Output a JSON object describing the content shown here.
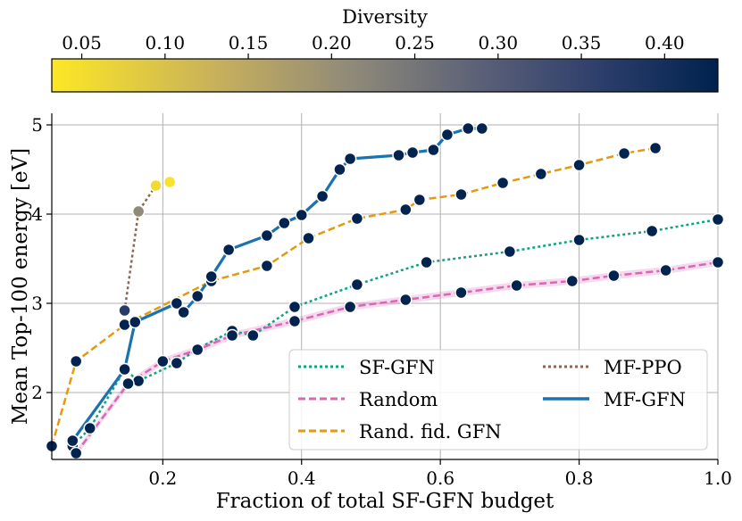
{
  "chart_data": {
    "type": "line",
    "xlabel": "Fraction of total SF-GFN budget",
    "ylabel": "Mean Top-100 energy [eV]",
    "xlim": [
      0.04,
      1.0
    ],
    "ylim": [
      1.25,
      5.13
    ],
    "xticks": [
      0.2,
      0.4,
      0.6,
      0.8,
      1.0
    ],
    "xtick_labels": [
      "0.2",
      "0.4",
      "0.6",
      "0.8",
      "1.0"
    ],
    "yticks": [
      2,
      3,
      4,
      5
    ],
    "ytick_labels": [
      "2",
      "3",
      "4",
      "5"
    ],
    "grid": true,
    "colorbar": {
      "label": "Diversity",
      "range": [
        0.032,
        0.432
      ],
      "ticks": [
        0.05,
        0.1,
        0.15,
        0.2,
        0.25,
        0.3,
        0.35,
        0.4
      ],
      "tick_labels": [
        "0.05",
        "0.10",
        "0.15",
        "0.20",
        "0.25",
        "0.30",
        "0.35",
        "0.40"
      ],
      "colormap": [
        "#fde725",
        "#c7b05c",
        "#8f8a79",
        "#595f77",
        "#2d3f6c",
        "#00224e"
      ]
    },
    "series": [
      {
        "name": "SF-GFN",
        "color": "#10a37f",
        "style": "dotted",
        "width": 2.5,
        "x": [
          0.07,
          0.095,
          0.145,
          0.165,
          0.22,
          0.25,
          0.3,
          0.33,
          0.39,
          0.48,
          0.58,
          0.7,
          0.8,
          0.905,
          1.0
        ],
        "y": [
          1.4,
          1.6,
          2.26,
          2.13,
          2.33,
          2.49,
          2.69,
          2.64,
          2.96,
          3.21,
          3.46,
          3.58,
          3.71,
          3.81,
          3.94
        ],
        "diversity": [
          0.43,
          0.43,
          0.43,
          0.43,
          0.43,
          0.43,
          0.43,
          0.43,
          0.43,
          0.43,
          0.43,
          0.43,
          0.43,
          0.43,
          0.43
        ]
      },
      {
        "name": "Random",
        "color": "#d868b6",
        "style": "dashed",
        "width": 2.5,
        "band": true,
        "x": [
          0.075,
          0.15,
          0.2,
          0.25,
          0.3,
          0.39,
          0.47,
          0.55,
          0.63,
          0.71,
          0.79,
          0.85,
          0.925,
          1.0
        ],
        "y": [
          1.32,
          2.1,
          2.35,
          2.48,
          2.64,
          2.8,
          2.96,
          3.04,
          3.12,
          3.2,
          3.25,
          3.31,
          3.37,
          3.46
        ],
        "diversity": [
          0.43,
          0.43,
          0.43,
          0.43,
          0.43,
          0.43,
          0.43,
          0.43,
          0.43,
          0.43,
          0.43,
          0.43,
          0.43,
          0.43
        ]
      },
      {
        "name": "Rand. fid. GFN",
        "color": "#e39a10",
        "style": "dashed",
        "width": 2.5,
        "x": [
          0.04,
          0.075,
          0.145,
          0.27,
          0.35,
          0.41,
          0.48,
          0.55,
          0.57,
          0.63,
          0.69,
          0.745,
          0.8,
          0.865,
          0.91
        ],
        "y": [
          1.4,
          2.35,
          2.76,
          3.25,
          3.42,
          3.73,
          3.95,
          4.05,
          4.16,
          4.22,
          4.35,
          4.45,
          4.55,
          4.68,
          4.74
        ],
        "diversity": [
          0.43,
          0.43,
          0.43,
          0.43,
          0.43,
          0.43,
          0.43,
          0.43,
          0.43,
          0.43,
          0.43,
          0.43,
          0.43,
          0.43,
          0.43
        ]
      },
      {
        "name": "MF-PPO",
        "color": "#8c6651",
        "style": "dotted",
        "width": 2.5,
        "x": [
          0.145,
          0.165,
          0.19,
          0.21
        ],
        "y": [
          2.92,
          4.03,
          4.32,
          4.36
        ],
        "diversity": [
          0.36,
          0.19,
          0.05,
          0.04
        ]
      },
      {
        "name": "MF-GFN",
        "color": "#1a73b0",
        "style": "solid",
        "width": 3.2,
        "x": [
          0.07,
          0.145,
          0.16,
          0.22,
          0.23,
          0.25,
          0.27,
          0.295,
          0.35,
          0.375,
          0.4,
          0.43,
          0.455,
          0.47,
          0.54,
          0.56,
          0.59,
          0.61,
          0.64,
          0.66
        ],
        "y": [
          1.46,
          2.26,
          2.79,
          3.0,
          2.9,
          3.08,
          3.3,
          3.6,
          3.76,
          3.9,
          3.99,
          4.2,
          4.5,
          4.62,
          4.66,
          4.69,
          4.72,
          4.89,
          4.96,
          4.96
        ],
        "diversity": [
          0.43,
          0.43,
          0.43,
          0.43,
          0.43,
          0.43,
          0.43,
          0.43,
          0.43,
          0.43,
          0.43,
          0.43,
          0.43,
          0.43,
          0.43,
          0.43,
          0.43,
          0.43,
          0.43,
          0.43
        ]
      }
    ],
    "legend": {
      "placement": "lower-right",
      "entries": [
        "SF-GFN",
        "Random",
        "Rand. fid. GFN",
        "MF-PPO",
        "MF-GFN"
      ]
    }
  }
}
